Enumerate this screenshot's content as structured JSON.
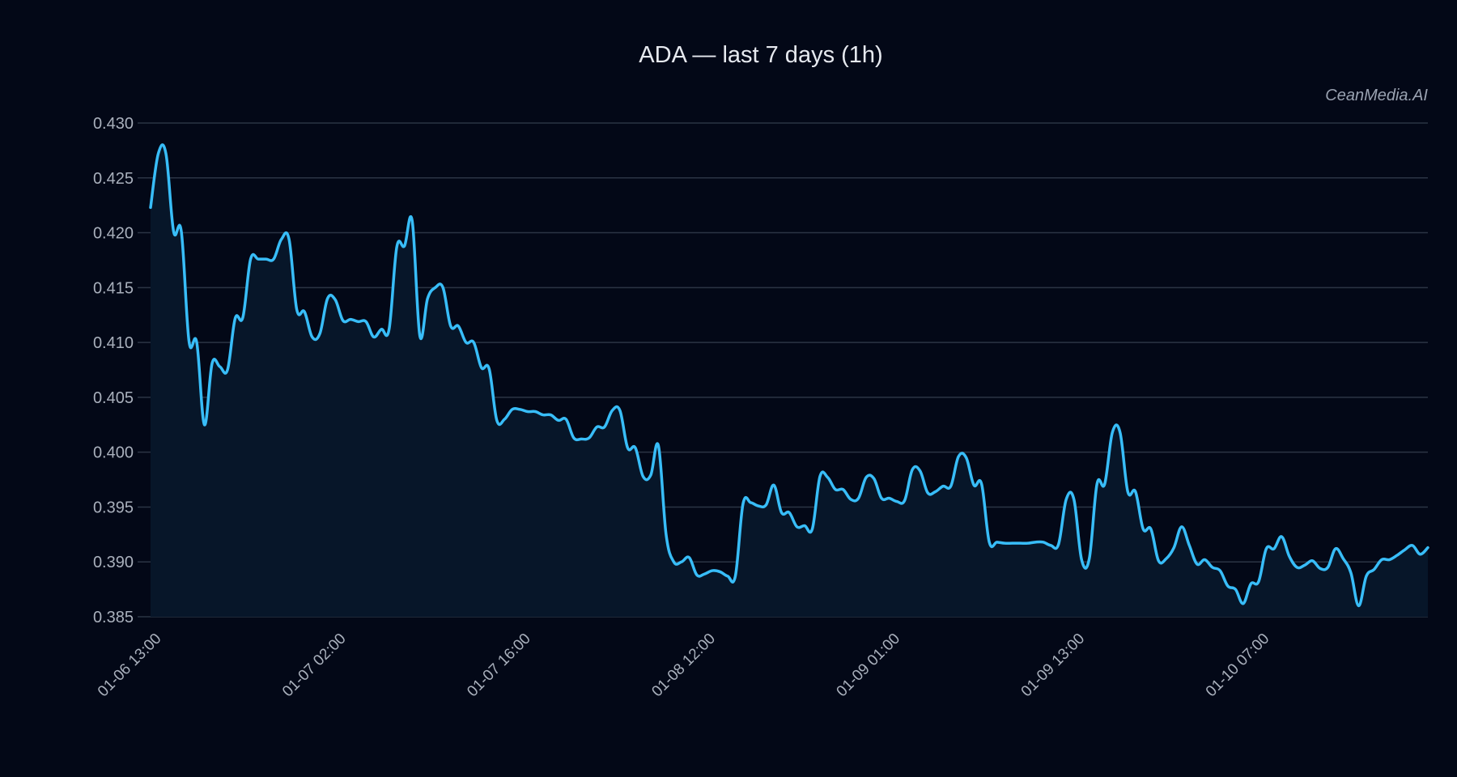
{
  "title": "ADA — last 7 days (1h)",
  "watermark": "CeanMedia.AI",
  "colors": {
    "background": "#030817",
    "line": "#38bdf8",
    "fill": "#071629",
    "grid": "#2b3444",
    "text": "#a9b0bc"
  },
  "chart_data": {
    "type": "area",
    "title": "ADA — last 7 days (1h)",
    "xlabel": "",
    "ylabel": "",
    "ylim": [
      0.385,
      0.43
    ],
    "yticks": [
      "0.430",
      "0.425",
      "0.420",
      "0.415",
      "0.410",
      "0.405",
      "0.400",
      "0.395",
      "0.390",
      "0.385"
    ],
    "ytick_values": [
      0.43,
      0.425,
      0.42,
      0.415,
      0.41,
      0.405,
      0.4,
      0.395,
      0.39,
      0.385
    ],
    "xticks": [
      "01-06 13:00",
      "01-07 02:00",
      "01-07 16:00",
      "01-08 12:00",
      "01-09 01:00",
      "01-09 13:00",
      "01-10 07:00"
    ],
    "xtick_index": [
      0,
      24,
      48,
      72,
      96,
      120,
      144
    ],
    "grid": "horizontal",
    "legend": null,
    "series": [
      {
        "name": "ADA",
        "values": [
          0.4223,
          0.4272,
          0.4272,
          0.4201,
          0.4201,
          0.4101,
          0.41,
          0.4025,
          0.4081,
          0.4078,
          0.4075,
          0.4122,
          0.4123,
          0.4176,
          0.4176,
          0.4176,
          0.4176,
          0.4194,
          0.4194,
          0.413,
          0.4128,
          0.4105,
          0.4108,
          0.414,
          0.4139,
          0.412,
          0.4121,
          0.4119,
          0.4119,
          0.4105,
          0.4112,
          0.4112,
          0.4187,
          0.4188,
          0.4211,
          0.4106,
          0.414,
          0.415,
          0.415,
          0.4115,
          0.4115,
          0.41,
          0.41,
          0.4077,
          0.4076,
          0.4029,
          0.403,
          0.4039,
          0.4039,
          0.4037,
          0.4037,
          0.4034,
          0.4034,
          0.4029,
          0.403,
          0.4013,
          0.4012,
          0.4013,
          0.4023,
          0.4023,
          0.4038,
          0.4038,
          0.4004,
          0.4004,
          0.3978,
          0.3979,
          0.4006,
          0.3925,
          0.39,
          0.39,
          0.3904,
          0.3888,
          0.3889,
          0.3892,
          0.3891,
          0.3887,
          0.3887,
          0.3953,
          0.3954,
          0.3951,
          0.3952,
          0.397,
          0.3945,
          0.3945,
          0.3932,
          0.3933,
          0.393,
          0.3978,
          0.3977,
          0.3966,
          0.3966,
          0.3957,
          0.3958,
          0.3977,
          0.3976,
          0.3958,
          0.3958,
          0.3955,
          0.3956,
          0.3984,
          0.3983,
          0.3963,
          0.3964,
          0.3969,
          0.3969,
          0.3996,
          0.3995,
          0.397,
          0.3971,
          0.3918,
          0.3918,
          0.3917,
          0.3917,
          0.3917,
          0.3917,
          0.3918,
          0.3918,
          0.3915,
          0.3916,
          0.3957,
          0.3957,
          0.3902,
          0.3903,
          0.3971,
          0.3971,
          0.4018,
          0.4018,
          0.3964,
          0.3964,
          0.393,
          0.393,
          0.3901,
          0.3903,
          0.3913,
          0.3932,
          0.3915,
          0.3898,
          0.3902,
          0.3895,
          0.3892,
          0.3878,
          0.3875,
          0.3862,
          0.388,
          0.3882,
          0.3912,
          0.3912,
          0.3923,
          0.3905,
          0.3895,
          0.3897,
          0.3901,
          0.3894,
          0.3895,
          0.3912,
          0.3903,
          0.389,
          0.386,
          0.3887,
          0.3893,
          0.3902,
          0.3902,
          0.3906,
          0.3911,
          0.3915,
          0.3907,
          0.3913
        ]
      }
    ]
  }
}
